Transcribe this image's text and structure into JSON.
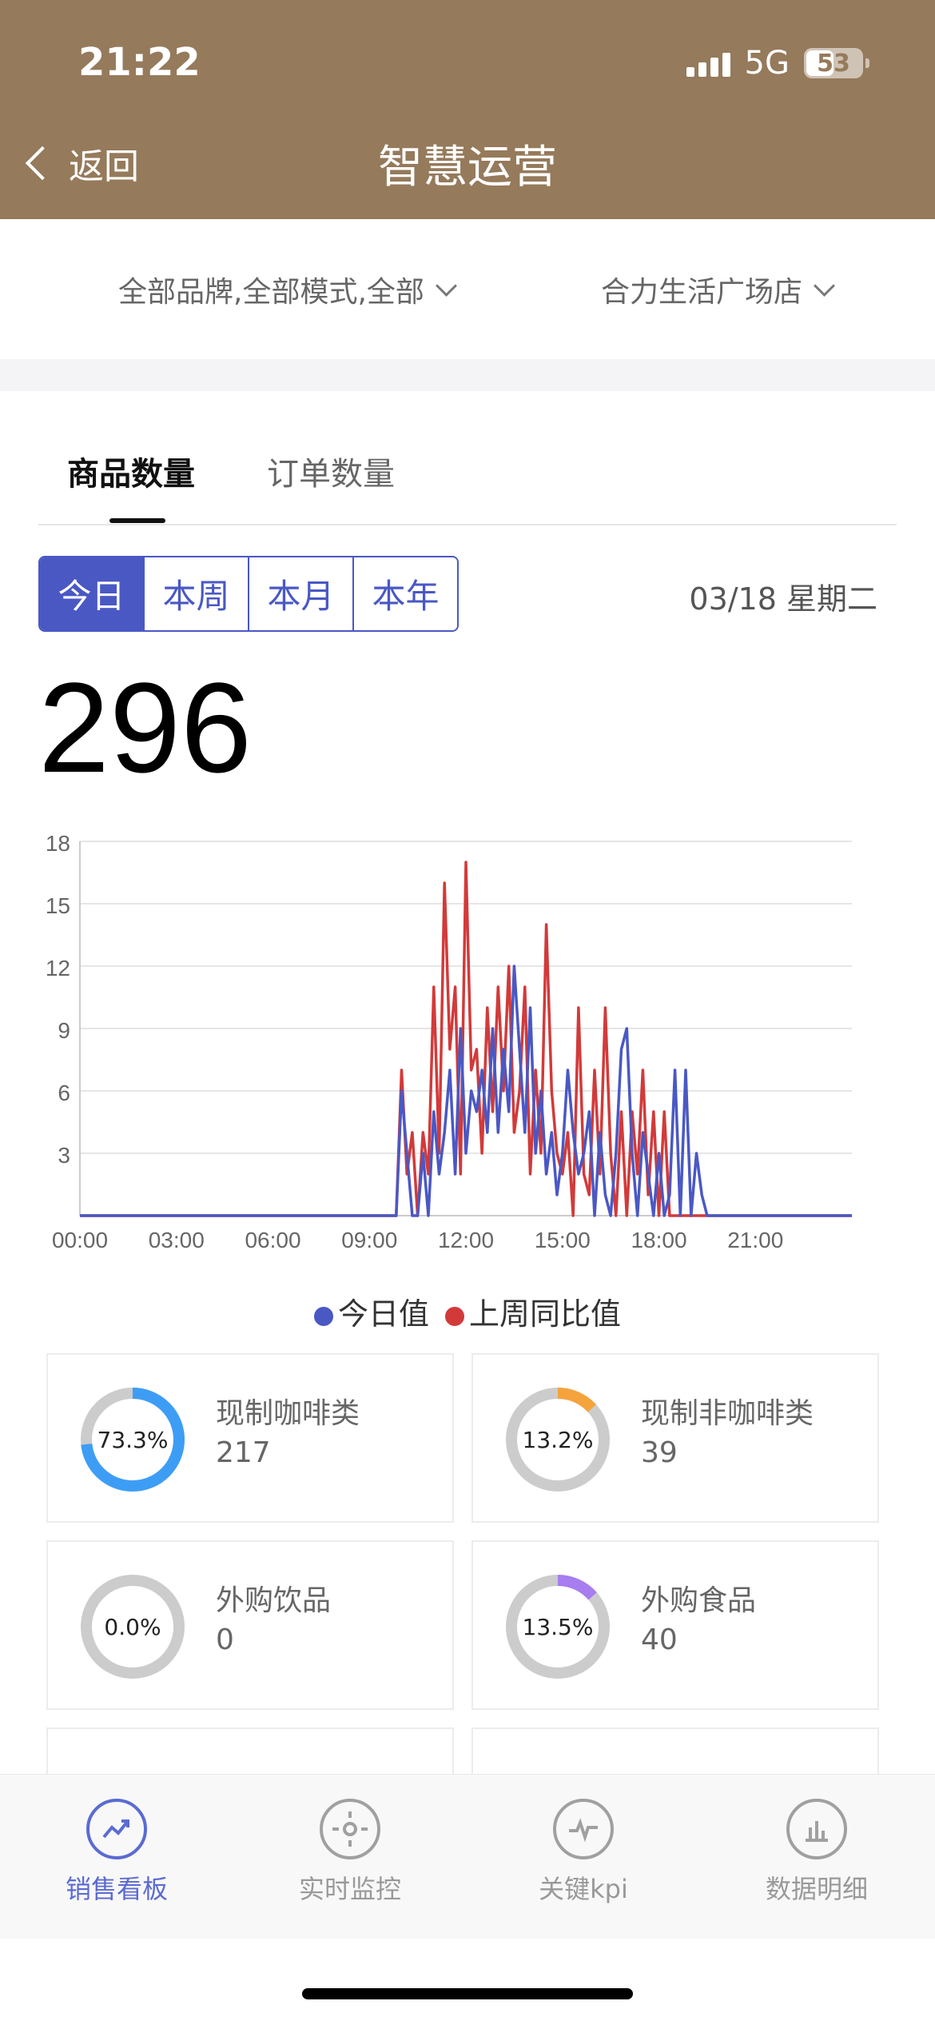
{
  "status_bar": {
    "time": "21:22",
    "network": "5G",
    "battery": "53"
  },
  "nav": {
    "back_label": "返回",
    "title": "智慧运营"
  },
  "filters": {
    "brand_mode": "全部品牌,全部模式,全部",
    "store": "合力生活广场店"
  },
  "tabs": [
    {
      "label": "商品数量",
      "active": true
    },
    {
      "label": "订单数量",
      "active": false
    }
  ],
  "periods": [
    {
      "label": "今日",
      "active": true
    },
    {
      "label": "本周"
    },
    {
      "label": "本月"
    },
    {
      "label": "本年"
    }
  ],
  "date": "03/18 星期二",
  "total": "296",
  "chart_data": {
    "type": "line",
    "x_tick_labels": [
      "00:00",
      "03:00",
      "06:00",
      "09:00",
      "12:00",
      "15:00",
      "18:00",
      "21:00"
    ],
    "y_tick_labels": [
      "18",
      "15",
      "12",
      "9",
      "6",
      "3"
    ],
    "ylim": [
      0,
      18
    ],
    "x_range_minutes": [
      0,
      1440
    ],
    "grid": true,
    "legend_position": "bottom",
    "series": [
      {
        "name": "今日值",
        "color": "#4a58c4",
        "values": [
          [
            590,
            0
          ],
          [
            600,
            6
          ],
          [
            610,
            3
          ],
          [
            620,
            0
          ],
          [
            630,
            0
          ],
          [
            640,
            3
          ],
          [
            650,
            0
          ],
          [
            660,
            5
          ],
          [
            670,
            2
          ],
          [
            680,
            4
          ],
          [
            690,
            7
          ],
          [
            700,
            2
          ],
          [
            710,
            9
          ],
          [
            720,
            3
          ],
          [
            730,
            6
          ],
          [
            740,
            5
          ],
          [
            750,
            7
          ],
          [
            760,
            4
          ],
          [
            770,
            9
          ],
          [
            780,
            4
          ],
          [
            790,
            8
          ],
          [
            800,
            5
          ],
          [
            810,
            12
          ],
          [
            820,
            8
          ],
          [
            830,
            4
          ],
          [
            840,
            10
          ],
          [
            850,
            3
          ],
          [
            860,
            6
          ],
          [
            870,
            2
          ],
          [
            880,
            4
          ],
          [
            890,
            1
          ],
          [
            900,
            3
          ],
          [
            910,
            7
          ],
          [
            920,
            4
          ],
          [
            930,
            2
          ],
          [
            940,
            3
          ],
          [
            950,
            5
          ],
          [
            960,
            0
          ],
          [
            970,
            4
          ],
          [
            980,
            1
          ],
          [
            990,
            0
          ],
          [
            1000,
            3
          ],
          [
            1010,
            8
          ],
          [
            1020,
            9
          ],
          [
            1030,
            3
          ],
          [
            1040,
            0
          ],
          [
            1050,
            4
          ],
          [
            1060,
            2
          ],
          [
            1070,
            0
          ],
          [
            1080,
            3
          ],
          [
            1090,
            0
          ],
          [
            1100,
            1
          ],
          [
            1110,
            7
          ],
          [
            1120,
            0
          ],
          [
            1130,
            7
          ],
          [
            1140,
            0
          ],
          [
            1150,
            3
          ],
          [
            1160,
            1
          ],
          [
            1170,
            0
          ]
        ]
      },
      {
        "name": "上周同比值",
        "color": "#d23a3a",
        "values": [
          [
            590,
            0
          ],
          [
            600,
            7
          ],
          [
            610,
            2
          ],
          [
            620,
            4
          ],
          [
            630,
            0
          ],
          [
            640,
            4
          ],
          [
            650,
            2
          ],
          [
            660,
            11
          ],
          [
            670,
            3
          ],
          [
            680,
            16
          ],
          [
            690,
            8
          ],
          [
            700,
            11
          ],
          [
            710,
            2
          ],
          [
            720,
            17
          ],
          [
            730,
            7
          ],
          [
            740,
            8
          ],
          [
            750,
            3
          ],
          [
            760,
            10
          ],
          [
            770,
            5
          ],
          [
            780,
            11
          ],
          [
            790,
            6
          ],
          [
            800,
            12
          ],
          [
            810,
            4
          ],
          [
            820,
            6
          ],
          [
            830,
            11
          ],
          [
            840,
            2
          ],
          [
            850,
            7
          ],
          [
            860,
            3
          ],
          [
            870,
            14
          ],
          [
            880,
            6
          ],
          [
            890,
            3
          ],
          [
            900,
            2
          ],
          [
            910,
            4
          ],
          [
            920,
            0
          ],
          [
            930,
            10
          ],
          [
            940,
            2
          ],
          [
            950,
            1
          ],
          [
            960,
            7
          ],
          [
            970,
            2
          ],
          [
            980,
            10
          ],
          [
            990,
            3
          ],
          [
            1000,
            0
          ],
          [
            1010,
            5
          ],
          [
            1020,
            0
          ],
          [
            1030,
            5
          ],
          [
            1040,
            2
          ],
          [
            1050,
            7
          ],
          [
            1060,
            1
          ],
          [
            1070,
            5
          ],
          [
            1080,
            0
          ],
          [
            1090,
            5
          ],
          [
            1100,
            0
          ],
          [
            1110,
            0
          ]
        ]
      }
    ]
  },
  "categories": [
    {
      "name": "现制咖啡类",
      "count": "217",
      "percent_label": "73.3%",
      "percent": 73.3,
      "color": "#3d9df5"
    },
    {
      "name": "现制非咖啡类",
      "count": "39",
      "percent_label": "13.2%",
      "percent": 13.2,
      "color": "#f5a33d"
    },
    {
      "name": "外购饮品",
      "count": "0",
      "percent_label": "0.0%",
      "percent": 0.0,
      "color": "#999999"
    },
    {
      "name": "外购食品",
      "count": "40",
      "percent_label": "13.5%",
      "percent": 13.5,
      "color": "#a77df0"
    }
  ],
  "tabbar": [
    {
      "label": "销售看板",
      "icon": "trend-icon",
      "active": true
    },
    {
      "label": "实时监控",
      "icon": "crosshair-icon",
      "active": false
    },
    {
      "label": "关键kpi",
      "icon": "pulse-icon",
      "active": false
    },
    {
      "label": "数据明细",
      "icon": "bar-chart-icon",
      "active": false
    }
  ]
}
